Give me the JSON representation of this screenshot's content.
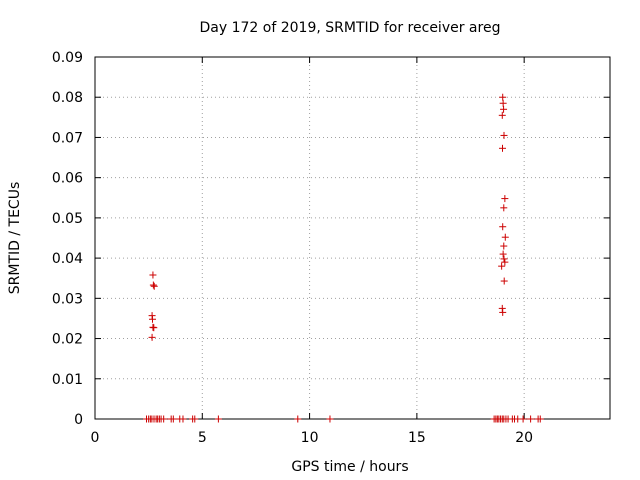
{
  "chart_data": {
    "type": "scatter",
    "title": "Day 172 of 2019, SRMTID for receiver areg",
    "xlabel": "GPS time / hours",
    "ylabel": "SRMTID / TECUs",
    "xlim": [
      0,
      24
    ],
    "ylim": [
      0,
      0.09
    ],
    "grid": true,
    "x_ticks": [
      0,
      5,
      10,
      15,
      20
    ],
    "x_tick_labels": [
      "0",
      "5",
      "10",
      "15",
      "20"
    ],
    "y_ticks": [
      0,
      0.01,
      0.02,
      0.03,
      0.04,
      0.05,
      0.06,
      0.07,
      0.08,
      0.09
    ],
    "y_tick_labels": [
      "0",
      "0.01",
      "0.02",
      "0.03",
      "0.04",
      "0.05",
      "0.06",
      "0.07",
      "0.08",
      "0.09"
    ],
    "marker_color": "#cc0000",
    "series": [
      {
        "name": "SRMTID",
        "marker": "+",
        "points": [
          {
            "x": 2.7,
            "y": 0.0358
          },
          {
            "x": 2.72,
            "y": 0.0333
          },
          {
            "x": 2.76,
            "y": 0.033
          },
          {
            "x": 2.66,
            "y": 0.0257
          },
          {
            "x": 2.68,
            "y": 0.0248
          },
          {
            "x": 2.7,
            "y": 0.0228
          },
          {
            "x": 2.74,
            "y": 0.0227
          },
          {
            "x": 2.66,
            "y": 0.0203
          },
          {
            "x": 19.0,
            "y": 0.08
          },
          {
            "x": 19.02,
            "y": 0.0785
          },
          {
            "x": 19.04,
            "y": 0.077
          },
          {
            "x": 18.98,
            "y": 0.0755
          },
          {
            "x": 19.06,
            "y": 0.0705
          },
          {
            "x": 18.99,
            "y": 0.0673
          },
          {
            "x": 19.1,
            "y": 0.0548
          },
          {
            "x": 19.05,
            "y": 0.0525
          },
          {
            "x": 19.0,
            "y": 0.0478
          },
          {
            "x": 19.12,
            "y": 0.0452
          },
          {
            "x": 19.05,
            "y": 0.043
          },
          {
            "x": 19.02,
            "y": 0.041
          },
          {
            "x": 19.06,
            "y": 0.0398
          },
          {
            "x": 19.1,
            "y": 0.039
          },
          {
            "x": 18.95,
            "y": 0.038
          },
          {
            "x": 19.07,
            "y": 0.0343
          },
          {
            "x": 18.98,
            "y": 0.0275
          },
          {
            "x": 19.0,
            "y": 0.0265
          },
          {
            "x": 2.4,
            "y": 0
          },
          {
            "x": 2.5,
            "y": 0
          },
          {
            "x": 2.58,
            "y": 0
          },
          {
            "x": 2.65,
            "y": 0
          },
          {
            "x": 2.75,
            "y": 0
          },
          {
            "x": 2.85,
            "y": 0
          },
          {
            "x": 2.92,
            "y": 0
          },
          {
            "x": 3.0,
            "y": 0
          },
          {
            "x": 3.08,
            "y": 0
          },
          {
            "x": 3.2,
            "y": 0
          },
          {
            "x": 3.55,
            "y": 0
          },
          {
            "x": 3.65,
            "y": 0
          },
          {
            "x": 3.95,
            "y": 0
          },
          {
            "x": 4.1,
            "y": 0
          },
          {
            "x": 4.55,
            "y": 0
          },
          {
            "x": 4.65,
            "y": 0
          },
          {
            "x": 5.75,
            "y": 0
          },
          {
            "x": 9.45,
            "y": 0
          },
          {
            "x": 10.95,
            "y": 0
          },
          {
            "x": 18.6,
            "y": 0
          },
          {
            "x": 18.68,
            "y": 0
          },
          {
            "x": 18.75,
            "y": 0
          },
          {
            "x": 18.82,
            "y": 0
          },
          {
            "x": 18.9,
            "y": 0
          },
          {
            "x": 18.98,
            "y": 0
          },
          {
            "x": 19.05,
            "y": 0
          },
          {
            "x": 19.15,
            "y": 0
          },
          {
            "x": 19.25,
            "y": 0
          },
          {
            "x": 19.45,
            "y": 0
          },
          {
            "x": 19.55,
            "y": 0
          },
          {
            "x": 19.7,
            "y": 0
          },
          {
            "x": 19.95,
            "y": 0
          },
          {
            "x": 20.3,
            "y": 0
          },
          {
            "x": 20.65,
            "y": 0
          },
          {
            "x": 20.75,
            "y": 0
          }
        ]
      }
    ]
  }
}
